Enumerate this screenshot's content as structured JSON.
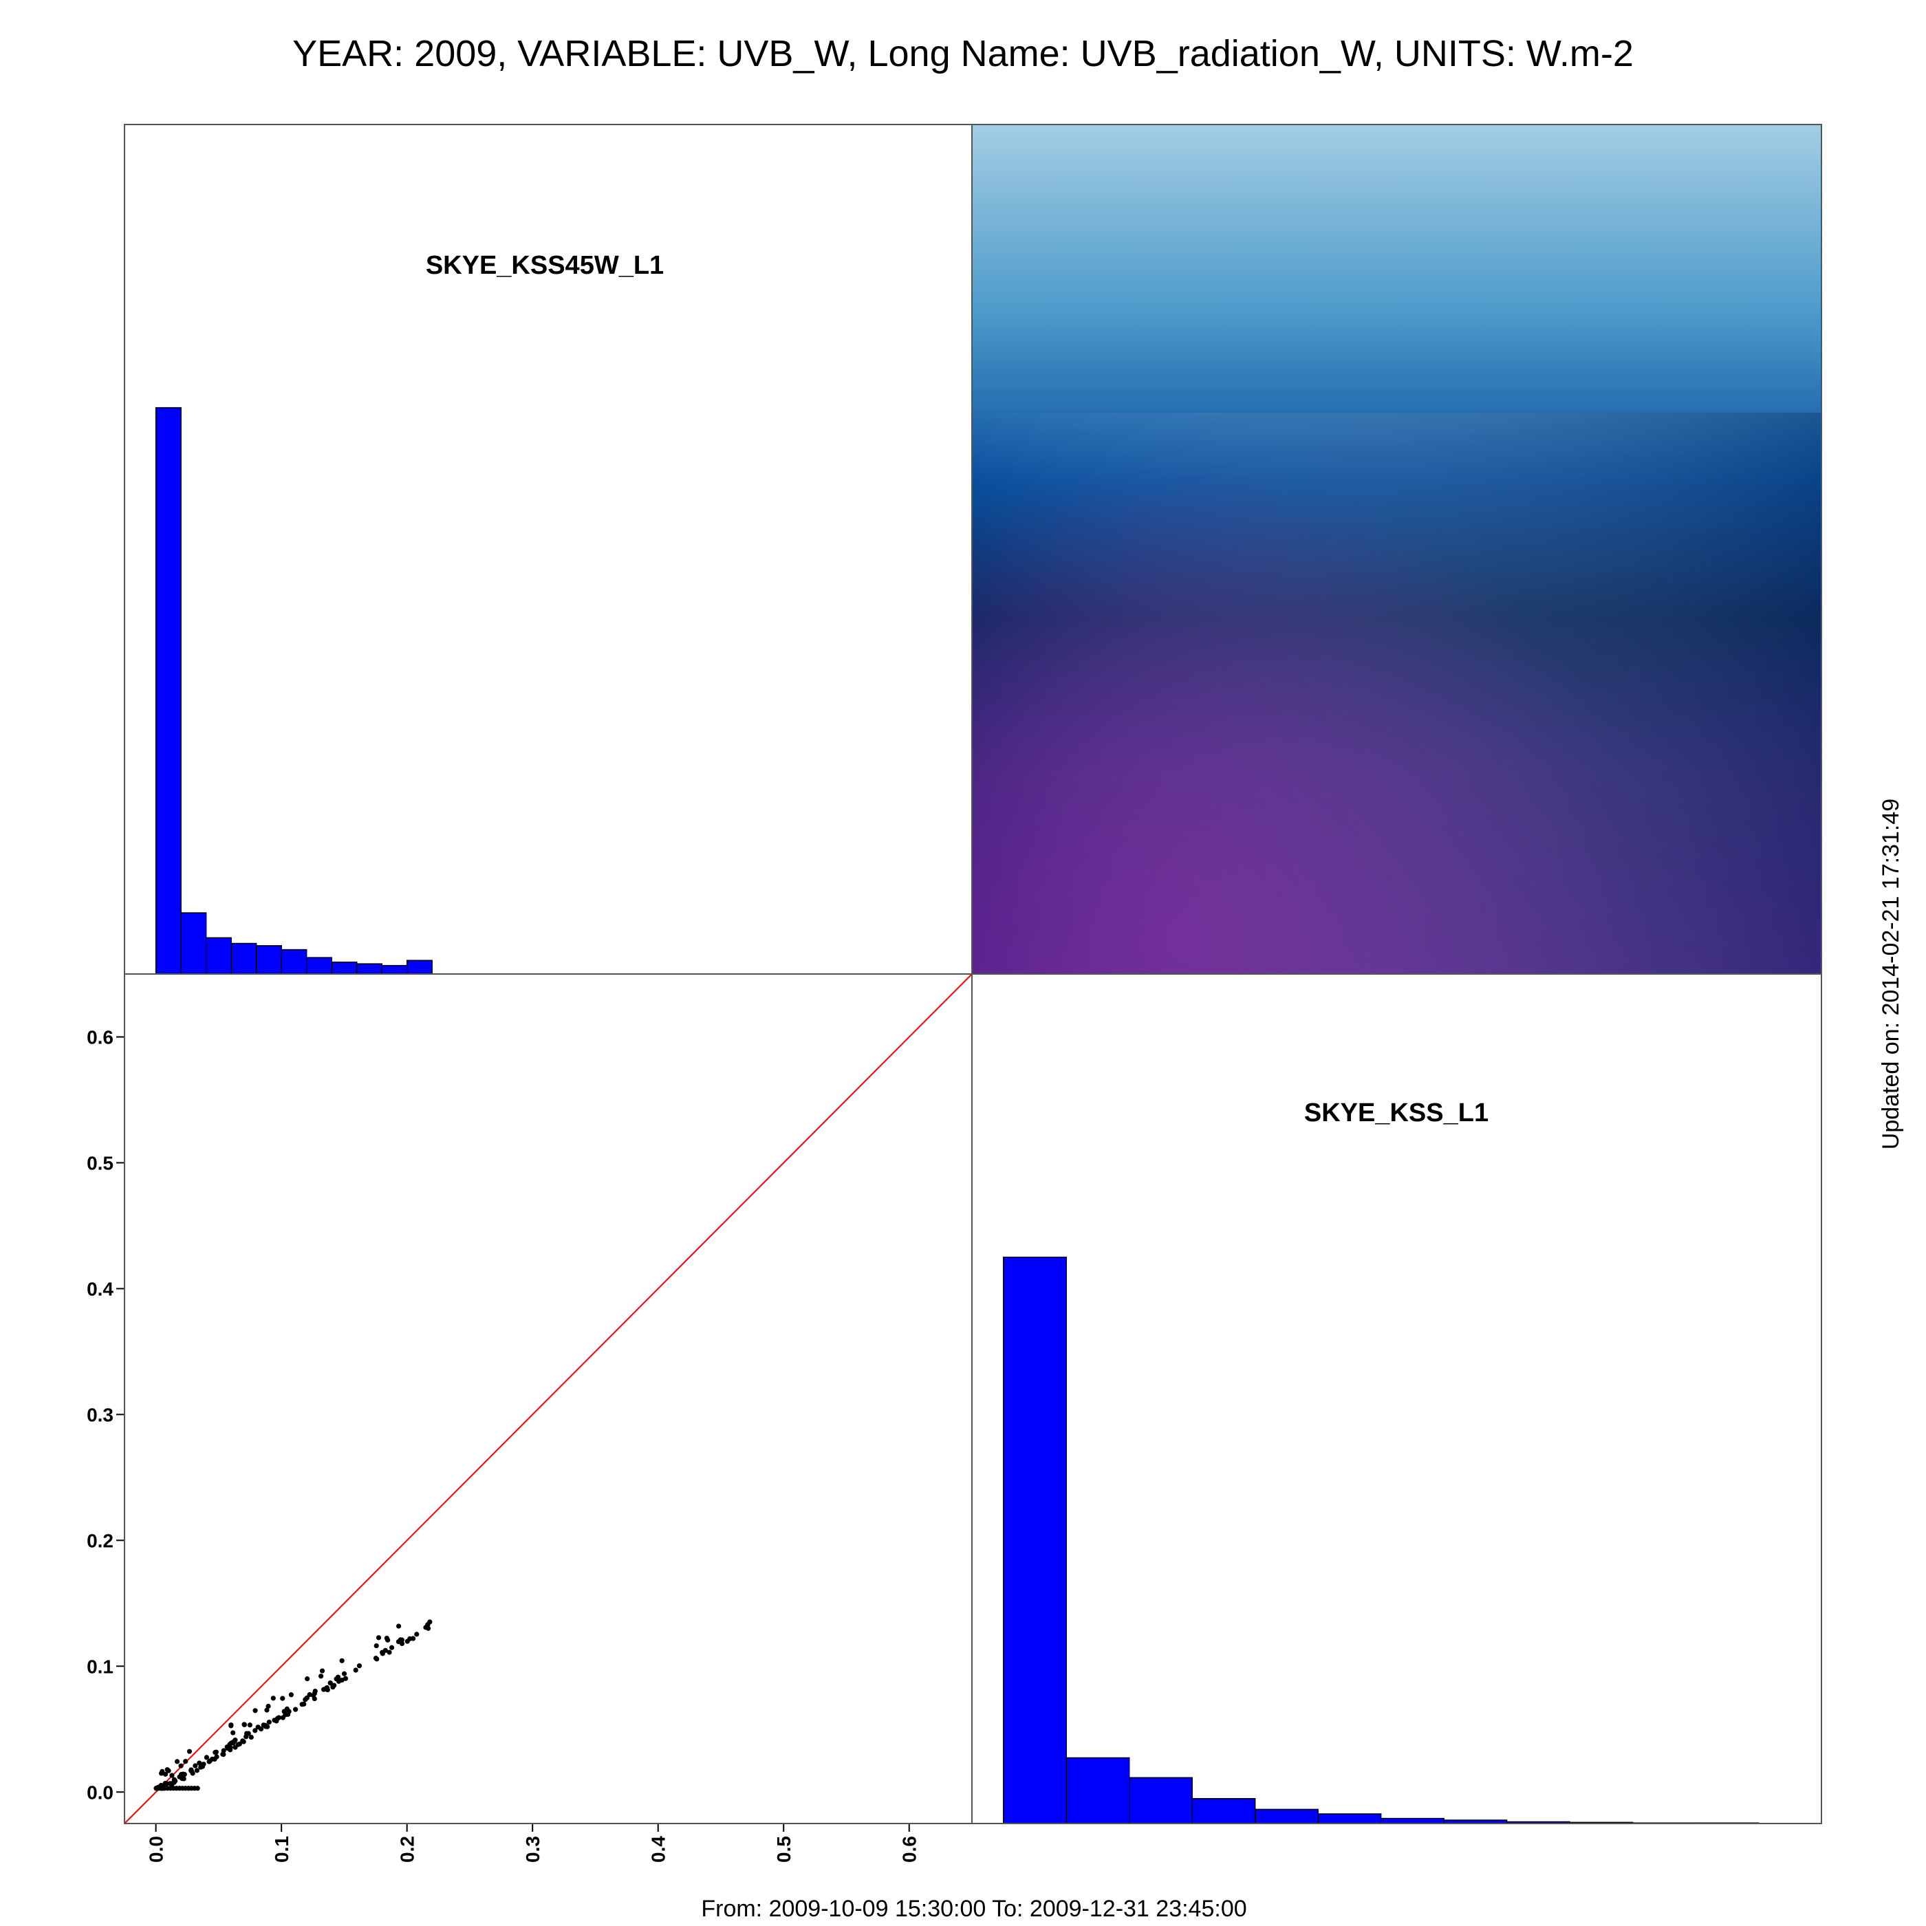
{
  "figure": {
    "title": "YEAR: 2009, VARIABLE: UVB_W, Long Name: UVB_radiation_W, UNITS: W.m-2",
    "footer": "From: 2009-10-09 15:30:00 To: 2009-12-31 23:45:00",
    "updated": "Updated on: 2014-02-21 17:31:49"
  },
  "colors": {
    "bar": "#0000ff",
    "bar_edge": "#000000",
    "identity_line": "#ff0000",
    "points": "#000000",
    "frame": "#000000",
    "density_high": "#08306b",
    "density_low": "#9ecae1",
    "density_purple": "#6a1b9a"
  },
  "chart_data": [
    {
      "type": "bar",
      "panel": "top-left",
      "label": "SKYE_KSS45W_L1",
      "bin_edges": [
        0.0,
        0.02,
        0.04,
        0.06,
        0.08,
        0.1,
        0.12,
        0.14,
        0.16,
        0.18,
        0.2,
        0.22
      ],
      "values": [
        1.0,
        0.108,
        0.064,
        0.054,
        0.05,
        0.043,
        0.029,
        0.021,
        0.018,
        0.015,
        0.024
      ],
      "xlim": [
        -0.025,
        0.65
      ],
      "ylim": [
        0,
        1.5
      ]
    },
    {
      "type": "heatmap",
      "panel": "top-right",
      "description_colors": [
        "light blue at top",
        "dark navy band through middle",
        "purple at bottom-left"
      ]
    },
    {
      "type": "scatter",
      "panel": "bottom-left",
      "x_ticks": [
        "0.0",
        "0.1",
        "0.2",
        "0.3",
        "0.4",
        "0.5",
        "0.6"
      ],
      "y_ticks": [
        "0.0",
        "0.1",
        "0.2",
        "0.3",
        "0.4",
        "0.5",
        "0.6"
      ],
      "xlim": [
        -0.025,
        0.65
      ],
      "ylim": [
        -0.025,
        0.65
      ],
      "identity_line": true,
      "trend_slope": 0.61,
      "x_max": 0.22
    },
    {
      "type": "bar",
      "panel": "bottom-right",
      "label": "SKYE_KSS_L1",
      "bin_edges": [
        0.0,
        0.01,
        0.02,
        0.03,
        0.04,
        0.05,
        0.06,
        0.07,
        0.08,
        0.09,
        0.1,
        0.11,
        0.12,
        0.13
      ],
      "values": [
        1.0,
        0.116,
        0.081,
        0.044,
        0.025,
        0.017,
        0.009,
        0.006,
        0.003,
        0.002,
        0.001,
        0.001,
        0.0
      ],
      "xlim": [
        -0.005,
        0.13
      ],
      "ylim": [
        0,
        1.5
      ]
    }
  ]
}
